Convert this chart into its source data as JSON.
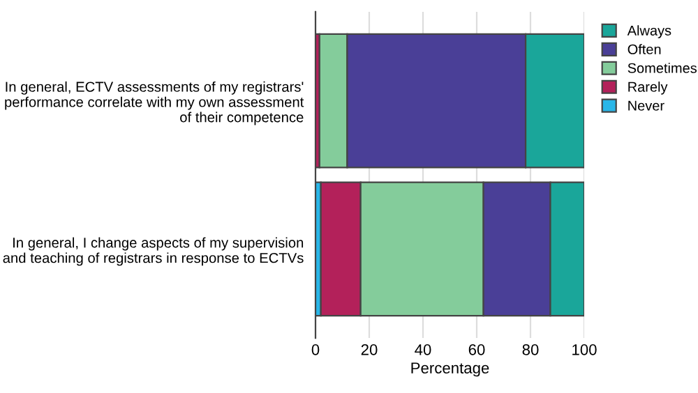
{
  "chart_data": {
    "type": "bar",
    "orientation": "horizontal",
    "stacked": true,
    "xlabel": "Percentage",
    "categories": [
      "In general, ECTV assessments of my registrars'\nperformance correlate with my own assessment\nof their competence",
      "In general, I change aspects of my supervision\nand teaching of registrars in response to ECTVs"
    ],
    "series": [
      {
        "name": "Never",
        "color": "#29b6e8",
        "values": [
          0,
          2.0
        ]
      },
      {
        "name": "Rarely",
        "color": "#b3215a",
        "values": [
          1.5,
          14.8
        ]
      },
      {
        "name": "Sometimes",
        "color": "#84cc9b",
        "values": [
          10.3,
          45.7
        ]
      },
      {
        "name": "Often",
        "color": "#4a3f97",
        "values": [
          66.4,
          24.9
        ]
      },
      {
        "name": "Always",
        "color": "#1aa69a",
        "values": [
          21.8,
          12.6
        ]
      }
    ],
    "xlim": [
      0,
      100
    ],
    "xticks": [
      0,
      20,
      40,
      60,
      80,
      100
    ],
    "grid": "x",
    "legend": "top right"
  }
}
